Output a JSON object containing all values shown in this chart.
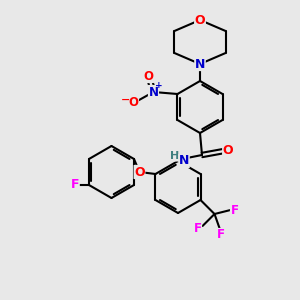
{
  "bg_color": "#e8e8e8",
  "bond_color": "#000000",
  "bond_width": 1.5,
  "atom_colors": {
    "C": "#000000",
    "N": "#0000cc",
    "O": "#ff0000",
    "F": "#ff00ff",
    "H": "#408080"
  },
  "figsize": [
    3.0,
    3.0
  ],
  "dpi": 100
}
